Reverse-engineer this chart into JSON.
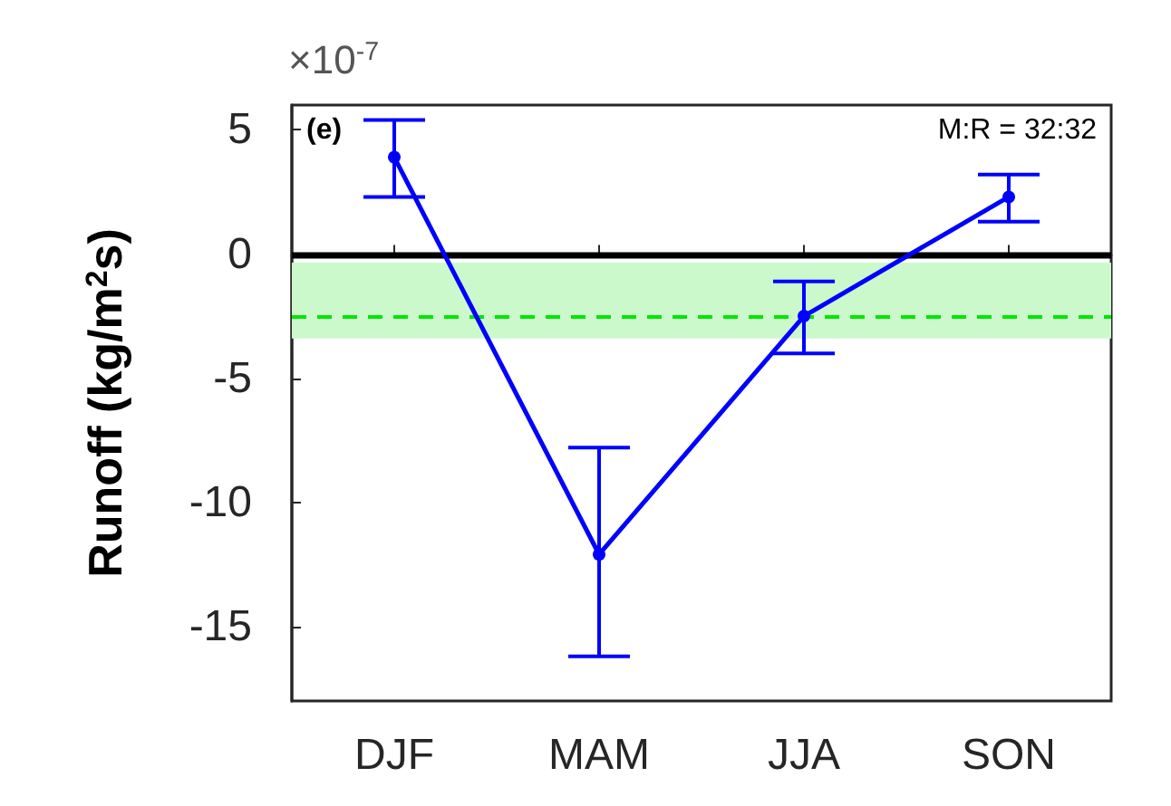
{
  "chart_data": {
    "type": "line",
    "ylabel": "Runoff (kg/m$^{2}$s)",
    "categories": [
      "DJF",
      "MAM",
      "JJA",
      "SON"
    ],
    "series": [
      {
        "color": "#0000ff",
        "values": [
          3.9,
          -12.1,
          -2.5,
          2.3
        ],
        "errors": [
          [
            2.3,
            5.4
          ],
          [
            -16.2,
            -7.8
          ],
          [
            -4,
            -1.1
          ],
          [
            1.3,
            3.2
          ]
        ]
      }
    ],
    "ylim": [
      -18,
      6
    ],
    "yticks": [
      -15,
      -10,
      -5,
      0,
      5
    ],
    "marker": "circle",
    "line_style": "solid",
    "grid": false,
    "ref_lines": [
      {
        "axis": "y",
        "value": 0,
        "color": "#000000",
        "line_style": "solid"
      },
      {
        "axis": "y",
        "value": -2.5,
        "color": "#00e600",
        "line_style": "dashed"
      }
    ],
    "bands": [
      {
        "axis": "y",
        "from": -3.4,
        "to": -0.35,
        "color": "#ccf9cc"
      }
    ],
    "annotations": [
      "×10$^{-7}$",
      "(e)",
      "M:R = 32:32"
    ]
  }
}
